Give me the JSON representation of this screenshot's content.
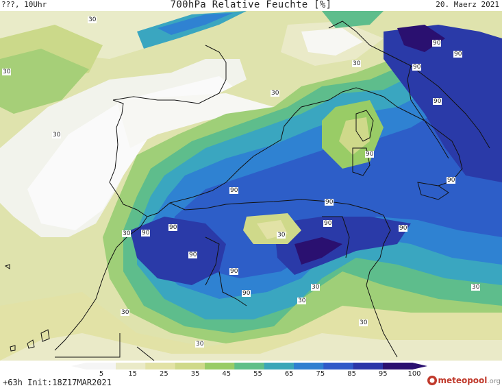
{
  "header": {
    "left": "???, 10Uhr",
    "title": "700hPa Relative Feuchte [%]",
    "date": "20. Maerz 2021"
  },
  "footer": {
    "init": "+63h Init:18Z17MAR2021",
    "logo": "meteopool",
    "logo_suffix": ".org"
  },
  "legend": {
    "ticks": [
      "5",
      "15",
      "25",
      "35",
      "45",
      "55",
      "65",
      "75",
      "85",
      "95",
      "100"
    ],
    "colors": [
      "#f5f5f5",
      "#eaeac8",
      "#e2e2a6",
      "#cfd98a",
      "#99cc66",
      "#5fbf88",
      "#3aa6b8",
      "#2f7fd0",
      "#2f59c8",
      "#2a35a8",
      "#2a1070"
    ]
  },
  "contour_labels": [
    {
      "text": "30"
    },
    {
      "text": "30"
    },
    {
      "text": "30"
    },
    {
      "text": "30"
    },
    {
      "text": "30"
    },
    {
      "text": "30"
    },
    {
      "text": "30"
    },
    {
      "text": "30"
    },
    {
      "text": "30"
    },
    {
      "text": "30"
    },
    {
      "text": "30"
    },
    {
      "text": "30"
    },
    {
      "text": "30"
    },
    {
      "text": "90"
    },
    {
      "text": "90"
    },
    {
      "text": "90"
    },
    {
      "text": "90"
    },
    {
      "text": "90"
    },
    {
      "text": "90"
    },
    {
      "text": "90"
    },
    {
      "text": "90"
    },
    {
      "text": "90"
    },
    {
      "text": "90"
    },
    {
      "text": "90"
    },
    {
      "text": "90"
    },
    {
      "text": "90"
    },
    {
      "text": "90"
    },
    {
      "text": "90"
    }
  ]
}
